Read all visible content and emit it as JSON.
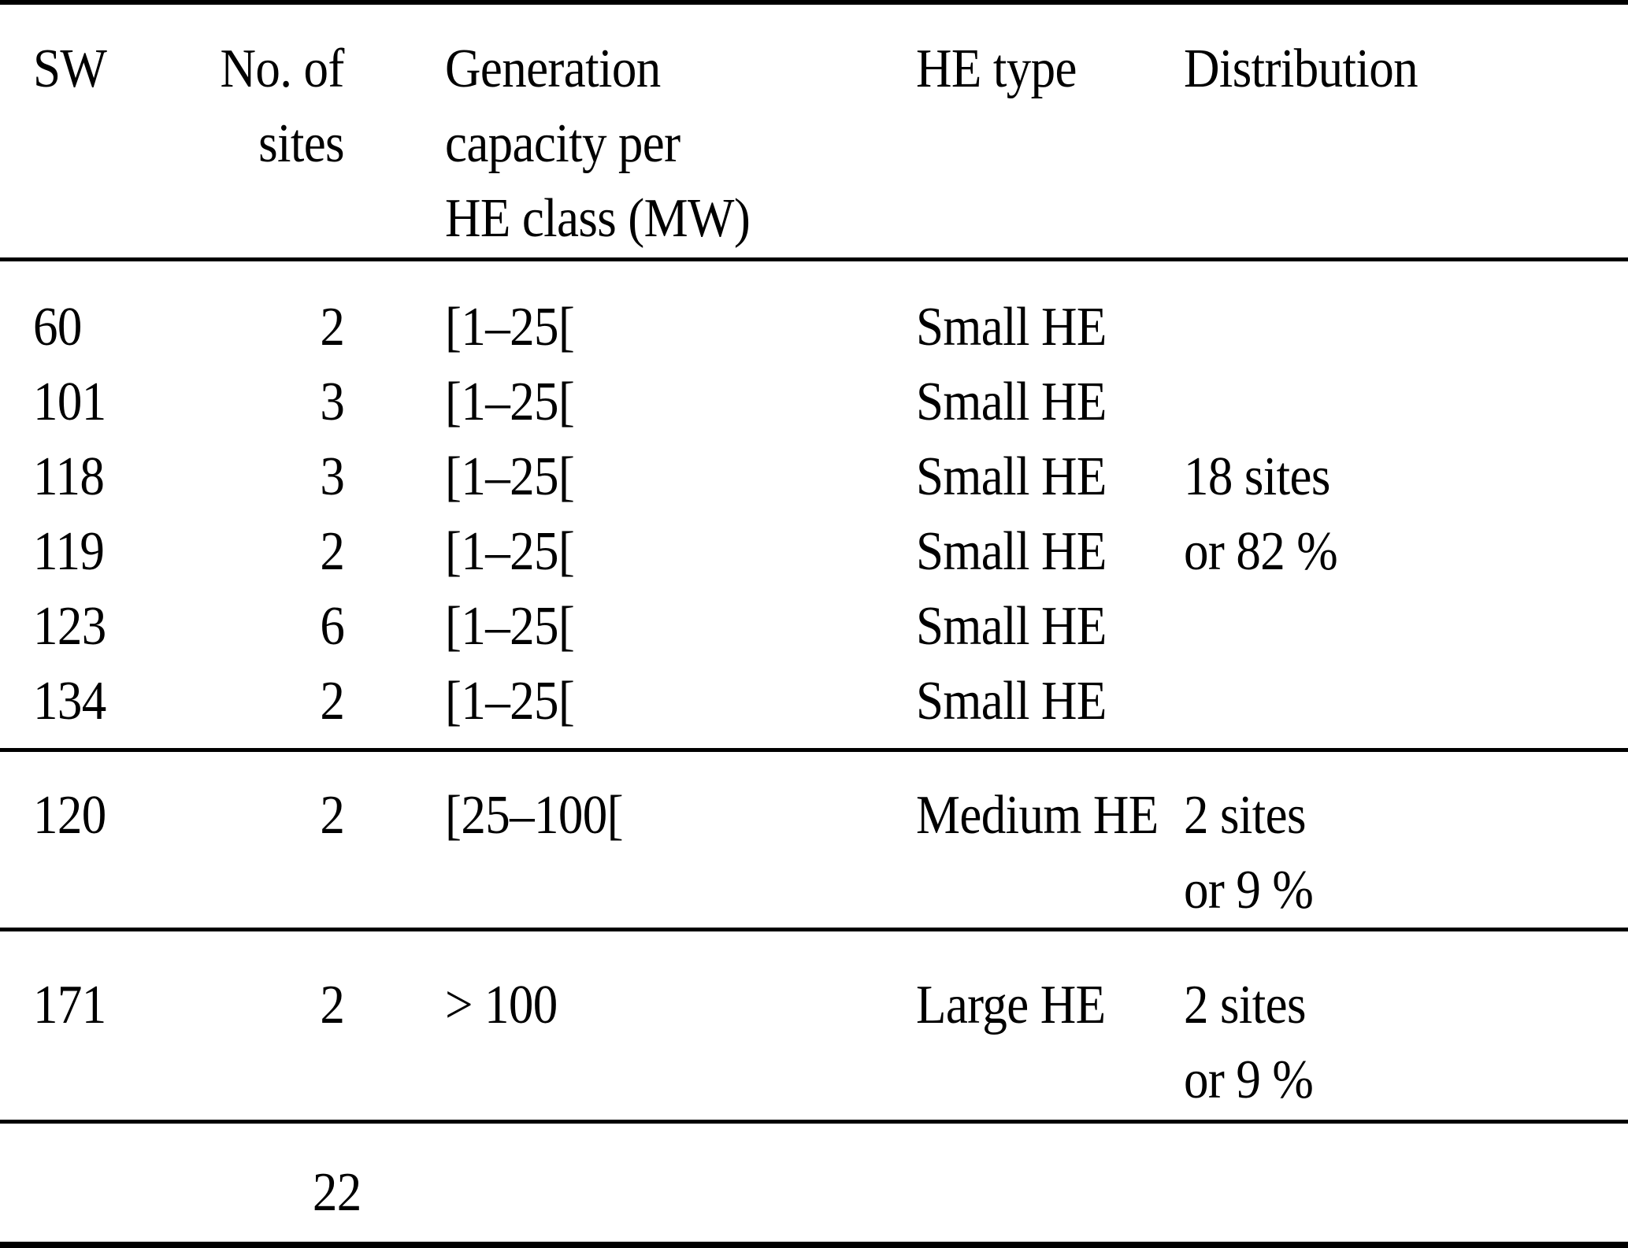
{
  "colors": {
    "text": "#000000",
    "background": "#ffffff",
    "rule": "#000000"
  },
  "header": {
    "sw": "SW",
    "sites_line1": "No. of",
    "sites_line2": "sites",
    "capacity_line1": "Generation",
    "capacity_line2": "capacity per",
    "capacity_line3": "HE class (MW)",
    "he_type": "HE type",
    "distribution": "Distribution"
  },
  "small_rows": [
    {
      "sw": "60",
      "sites": "2",
      "capacity": "[1–25[",
      "he_type": "Small HE",
      "distribution": ""
    },
    {
      "sw": "101",
      "sites": "3",
      "capacity": "[1–25[",
      "he_type": "Small HE",
      "distribution": ""
    },
    {
      "sw": "118",
      "sites": "3",
      "capacity": "[1–25[",
      "he_type": "Small HE",
      "distribution": "18 sites"
    },
    {
      "sw": "119",
      "sites": "2",
      "capacity": "[1–25[",
      "he_type": "Small HE",
      "distribution": "or 82 %"
    },
    {
      "sw": "123",
      "sites": "6",
      "capacity": "[1–25[",
      "he_type": "Small HE",
      "distribution": ""
    },
    {
      "sw": "134",
      "sites": "2",
      "capacity": "[1–25[",
      "he_type": "Small HE",
      "distribution": ""
    }
  ],
  "medium_row": {
    "sw": "120",
    "sites": "2",
    "capacity": "[25–100[",
    "he_type": "Medium HE",
    "distribution_line1": "2 sites",
    "distribution_line2": "or 9 %"
  },
  "large_row": {
    "sw": "171",
    "sites": "2",
    "capacity": "> 100",
    "he_type": "Large HE",
    "distribution_line1": "2 sites",
    "distribution_line2": "or 9 %"
  },
  "total_row": {
    "sites_total": "22"
  }
}
